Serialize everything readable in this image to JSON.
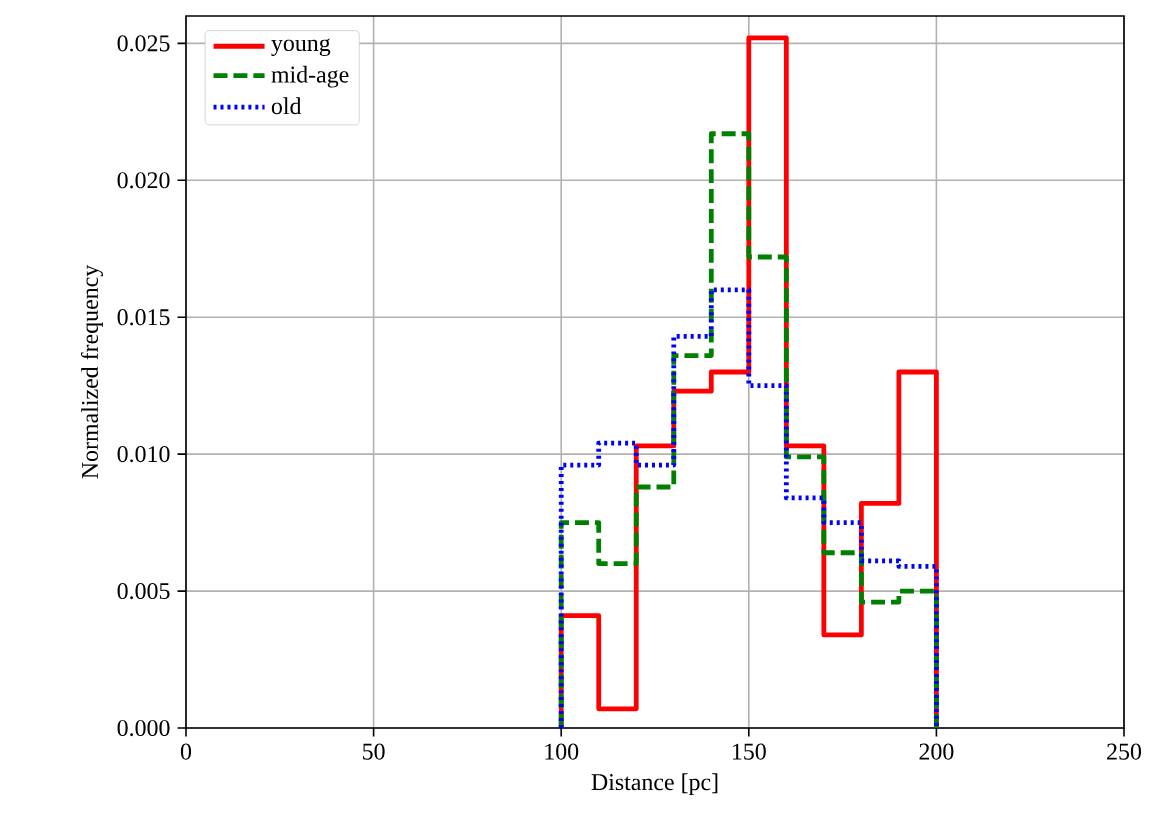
{
  "chart_data": {
    "type": "histogram",
    "xlabel": "Distance [pc]",
    "ylabel": "Normalized frequency",
    "bins": [
      100,
      110,
      120,
      130,
      140,
      150,
      160,
      170,
      180,
      190,
      200
    ],
    "series": [
      {
        "name": "young",
        "color": "#ff0000",
        "line_style": "solid",
        "values": [
          0.0041,
          0.0007,
          0.0103,
          0.0123,
          0.013,
          0.0252,
          0.0103,
          0.0034,
          0.0082,
          0.013
        ]
      },
      {
        "name": "mid-age",
        "color": "#008000",
        "line_style": "dashed",
        "values": [
          0.0075,
          0.006,
          0.0088,
          0.0136,
          0.0217,
          0.0172,
          0.0099,
          0.0064,
          0.0046,
          0.005
        ]
      },
      {
        "name": "old",
        "color": "#0000ff",
        "line_style": "dotted",
        "values": [
          0.0096,
          0.0104,
          0.0096,
          0.0143,
          0.016,
          0.0125,
          0.0084,
          0.0075,
          0.0061,
          0.0059
        ]
      }
    ],
    "xlim": [
      0,
      250
    ],
    "ylim": [
      0,
      0.026
    ],
    "xticks": [
      0,
      50,
      100,
      150,
      200,
      250
    ],
    "yticks": [
      {
        "value": 0,
        "label": "0.000"
      },
      {
        "value": 0.005,
        "label": "0.005"
      },
      {
        "value": 0.01,
        "label": "0.010"
      },
      {
        "value": 0.015,
        "label": "0.015"
      },
      {
        "value": 0.02,
        "label": "0.020"
      },
      {
        "value": 0.025,
        "label": "0.025"
      }
    ],
    "grid": true,
    "legend": "top left"
  }
}
